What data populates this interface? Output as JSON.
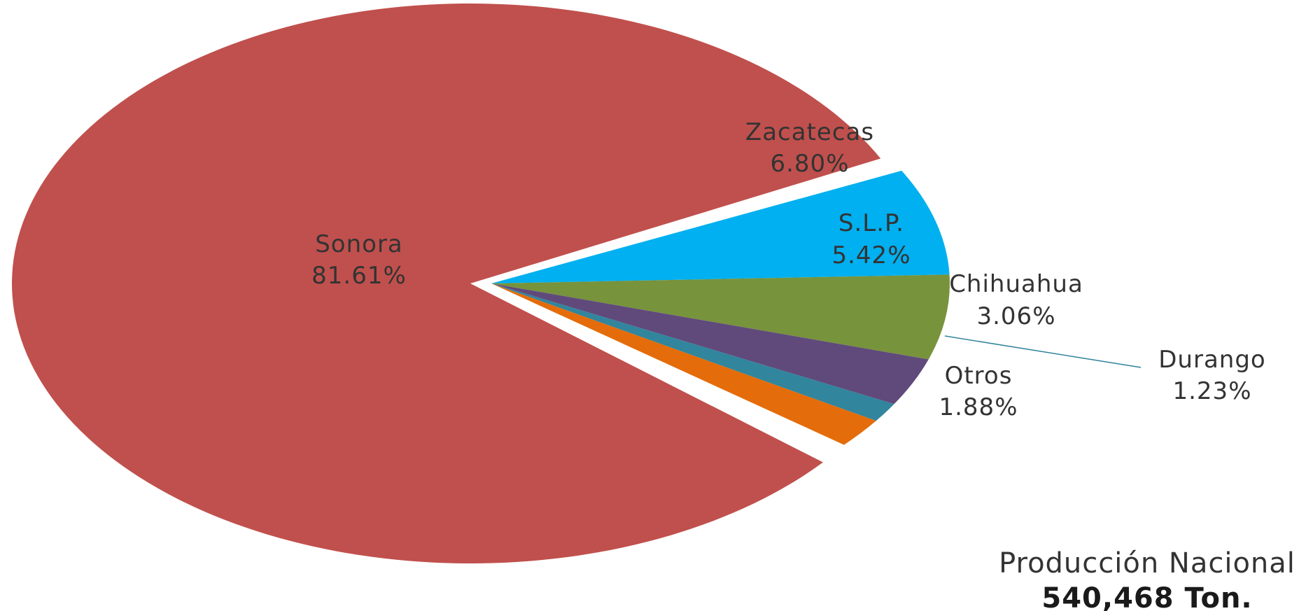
{
  "chart_data": {
    "type": "pie",
    "slices": [
      {
        "label": "Zacatecas",
        "value": 6.8,
        "value_label": "6.80%",
        "color": "#00b0f0"
      },
      {
        "label": "S.L.P.",
        "value": 5.42,
        "value_label": "5.42%",
        "color": "#77933c"
      },
      {
        "label": "Chihuahua",
        "value": 3.06,
        "value_label": "3.06%",
        "color": "#604a7b"
      },
      {
        "label": "Durango",
        "value": 1.23,
        "value_label": "1.23%",
        "color": "#31859c"
      },
      {
        "label": "Otros",
        "value": 1.88,
        "value_label": "1.88%",
        "color": "#e46c0a"
      },
      {
        "label": "Sonora",
        "value": 81.61,
        "value_label": "81.61%",
        "color": "#c0504d"
      }
    ],
    "legend": "none",
    "annotation": {
      "title": "Producción Nacional",
      "total": "540,468 Ton."
    }
  }
}
